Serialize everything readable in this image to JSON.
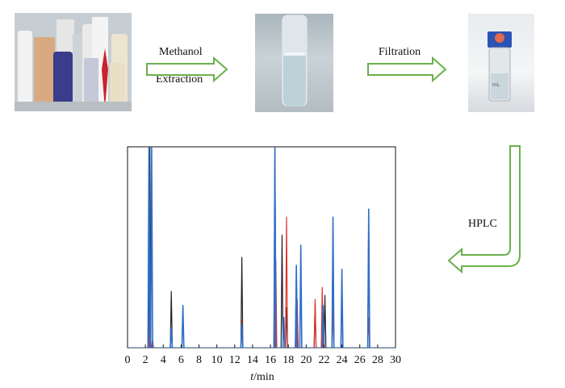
{
  "steps": {
    "methanol": "Methanol",
    "extraction": "Extraction",
    "filtration": "Filtration",
    "hplc": "HPLC"
  },
  "colors": {
    "arrow": "#6ab04c",
    "series_black": "#222222",
    "series_red": "#e0302a",
    "series_blue": "#2f6fc8"
  },
  "chart_data": {
    "type": "line",
    "xlabel_italic": "t",
    "xlabel_unit": "/min",
    "xlim": [
      0,
      30
    ],
    "ylim": [
      0,
      100
    ],
    "x_ticks": [
      "0",
      "2",
      "4",
      "6",
      "8",
      "10",
      "12",
      "14",
      "16",
      "18",
      "20",
      "22",
      "24",
      "26",
      "28",
      "30"
    ],
    "series": [
      {
        "color": "#222222",
        "peaks": [
          [
            2.5,
            100
          ],
          [
            4.9,
            28
          ],
          [
            12.8,
            45
          ],
          [
            16.5,
            100
          ],
          [
            17.3,
            56
          ],
          [
            17.8,
            20
          ],
          [
            18.9,
            38
          ],
          [
            21.0,
            22
          ],
          [
            22.1,
            26
          ],
          [
            23.0,
            55
          ],
          [
            24.0,
            34
          ],
          [
            27.0,
            65
          ]
        ]
      },
      {
        "color": "#e0302a",
        "peaks": [
          [
            2.5,
            20
          ],
          [
            2.8,
            4
          ],
          [
            12.8,
            14
          ],
          [
            16.6,
            44
          ],
          [
            17.8,
            65
          ],
          [
            19.0,
            24
          ],
          [
            21.0,
            24
          ],
          [
            21.8,
            30
          ],
          [
            23.0,
            21
          ],
          [
            27.0,
            15
          ]
        ]
      },
      {
        "color": "#2f6fc8",
        "peaks": [
          [
            2.4,
            100
          ],
          [
            2.7,
            100
          ],
          [
            4.9,
            10
          ],
          [
            6.2,
            21
          ],
          [
            12.8,
            12
          ],
          [
            16.5,
            100
          ],
          [
            17.5,
            15
          ],
          [
            18.9,
            41
          ],
          [
            19.4,
            51
          ],
          [
            21.9,
            21
          ],
          [
            23.0,
            65
          ],
          [
            24.0,
            39
          ],
          [
            27.0,
            69
          ]
        ]
      }
    ]
  }
}
